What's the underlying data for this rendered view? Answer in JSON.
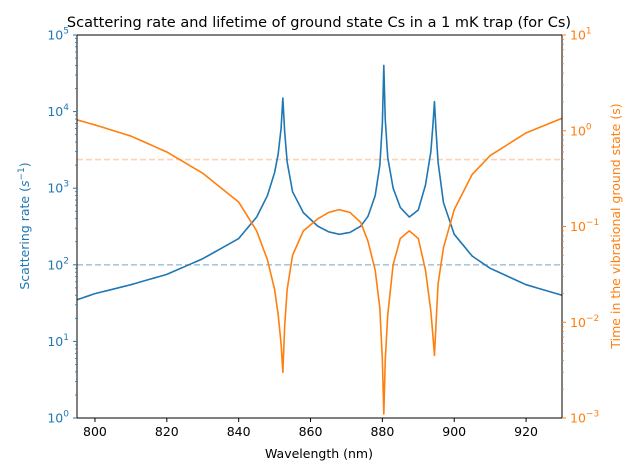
{
  "chart_data": {
    "type": "line",
    "title": "Scattering rate and lifetime of ground state Cs in a 1 mK trap (for Cs)",
    "xlabel": "Wavelength (nm)",
    "ylabel_left_base": "Scattering rate (",
    "ylabel_left_sym": "s",
    "ylabel_left_exp": "−1",
    "ylabel_left_close": ")",
    "ylabel_right": "Time in the vibrational ground state (s)",
    "xlim": [
      795,
      930
    ],
    "ylim_left": [
      1,
      100000
    ],
    "ylim_right": [
      0.001,
      10
    ],
    "yscale": "log",
    "grid": false,
    "x_ticks": [
      "800",
      "820",
      "840",
      "860",
      "880",
      "900",
      "920"
    ],
    "x_tick_values": [
      800,
      820,
      840,
      860,
      880,
      900,
      920
    ],
    "y_left_ticks": [
      {
        "base": "10",
        "exp": "0",
        "value": 1
      },
      {
        "base": "10",
        "exp": "1",
        "value": 10
      },
      {
        "base": "10",
        "exp": "2",
        "value": 100
      },
      {
        "base": "10",
        "exp": "3",
        "value": 1000
      },
      {
        "base": "10",
        "exp": "4",
        "value": 10000
      },
      {
        "base": "10",
        "exp": "5",
        "value": 100000
      }
    ],
    "y_right_ticks": [
      {
        "base": "10",
        "exp": "−3",
        "value": 0.001
      },
      {
        "base": "10",
        "exp": "−2",
        "value": 0.01
      },
      {
        "base": "10",
        "exp": "−1",
        "value": 0.1
      },
      {
        "base": "10",
        "exp": "0",
        "value": 1
      },
      {
        "base": "10",
        "exp": "1",
        "value": 10
      }
    ],
    "reference_lines": [
      {
        "axis": "left",
        "value": 100
      },
      {
        "axis": "right",
        "value": 0.5
      }
    ],
    "resonances_nm": [
      852.3,
      880.4,
      894.5
    ],
    "series": [
      {
        "axis": "left",
        "x": [
          795,
          800,
          810,
          820,
          830,
          840,
          845,
          848,
          850,
          851,
          851.8,
          852.3,
          852.8,
          853.5,
          855,
          858,
          862,
          865,
          868,
          871,
          874,
          876,
          878,
          879.3,
          880.0,
          880.4,
          880.8,
          881.5,
          883,
          885,
          887.5,
          890,
          892,
          893.5,
          894.1,
          894.5,
          894.9,
          895.5,
          897,
          900,
          905,
          910,
          920,
          930
        ],
        "y": [
          35,
          42,
          55,
          75,
          120,
          220,
          420,
          800,
          1600,
          2800,
          6000,
          15000,
          5500,
          2200,
          900,
          480,
          320,
          270,
          250,
          265,
          320,
          430,
          800,
          2000,
          7000,
          40000,
          8000,
          2500,
          1000,
          560,
          420,
          520,
          1100,
          3000,
          7000,
          13500,
          6000,
          2200,
          650,
          250,
          130,
          90,
          55,
          40
        ]
      },
      {
        "axis": "right",
        "x": [
          795,
          800,
          810,
          820,
          830,
          840,
          845,
          848,
          850,
          851,
          851.8,
          852.3,
          852.8,
          853.5,
          855,
          858,
          862,
          865,
          868,
          871,
          874,
          876,
          878,
          879.3,
          880.0,
          880.4,
          880.8,
          881.5,
          883,
          885,
          887.5,
          890,
          892,
          893.5,
          894.1,
          894.5,
          894.9,
          895.5,
          897,
          900,
          905,
          910,
          920,
          930
        ],
        "y": [
          1.3,
          1.15,
          0.88,
          0.6,
          0.36,
          0.18,
          0.09,
          0.045,
          0.022,
          0.012,
          0.006,
          0.003,
          0.009,
          0.022,
          0.05,
          0.09,
          0.12,
          0.14,
          0.15,
          0.14,
          0.11,
          0.07,
          0.035,
          0.014,
          0.004,
          0.0011,
          0.004,
          0.012,
          0.04,
          0.075,
          0.09,
          0.075,
          0.035,
          0.013,
          0.007,
          0.0045,
          0.009,
          0.025,
          0.06,
          0.15,
          0.35,
          0.55,
          0.95,
          1.35
        ]
      }
    ]
  },
  "colors": {
    "left": "#1f77b4",
    "right": "#ff7f0e",
    "axes": "#000000",
    "left_ref_line": "#a6c8e0",
    "right_ref_line": "#ffd2b0"
  }
}
